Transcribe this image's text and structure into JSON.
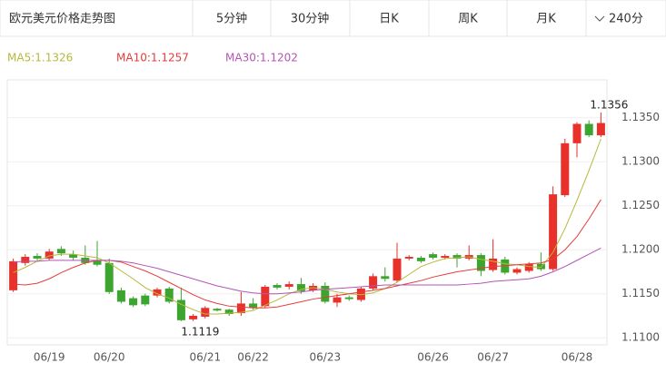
{
  "header": {
    "title": "欧元美元价格走势图",
    "tabs": [
      "5分钟",
      "30分钟",
      "日K",
      "周K",
      "月K"
    ],
    "dropdown": "240分"
  },
  "chart_data": {
    "type": "candlestick",
    "legend": [
      "MA5:1.1326",
      "MA10:1.1257",
      "MA30:1.1202"
    ],
    "categories": [
      null,
      null,
      null,
      "06/19",
      null,
      null,
      null,
      null,
      "06/20",
      null,
      null,
      null,
      null,
      null,
      null,
      null,
      "06/21",
      null,
      null,
      null,
      "06/22",
      null,
      null,
      null,
      null,
      null,
      "06/23",
      null,
      null,
      null,
      null,
      null,
      null,
      null,
      null,
      "06/26",
      null,
      null,
      null,
      null,
      "06/27",
      null,
      null,
      null,
      null,
      null,
      null,
      "06/28",
      null,
      null
    ],
    "open": [
      1.1154,
      1.1185,
      1.1193,
      1.119,
      1.1201,
      1.1195,
      1.1191,
      1.1188,
      1.1185,
      1.1154,
      1.1145,
      1.1148,
      1.1148,
      1.1156,
      1.1143,
      1.1121,
      1.1124,
      1.1133,
      1.1132,
      1.1128,
      1.1139,
      1.1136,
      1.116,
      1.1158,
      1.1161,
      1.1154,
      1.1159,
      1.114,
      1.1146,
      1.1143,
      1.1156,
      1.117,
      1.1165,
      1.119,
      1.1191,
      1.1195,
      1.1191,
      1.1194,
      1.119,
      1.1194,
      1.1177,
      1.1189,
      1.1174,
      1.1176,
      1.1184,
      1.1178,
      1.1262,
      1.1321,
      1.1343,
      1.133
    ],
    "high": [
      1.119,
      1.1195,
      1.1196,
      1.1201,
      1.1204,
      1.1199,
      1.1205,
      1.121,
      1.119,
      1.1157,
      1.1147,
      1.115,
      1.1157,
      1.1158,
      1.1157,
      1.1127,
      1.1136,
      1.1134,
      1.1133,
      1.1152,
      1.1145,
      1.116,
      1.1162,
      1.1164,
      1.1168,
      1.1162,
      1.1163,
      1.115,
      1.1148,
      1.1158,
      1.1173,
      1.118,
      1.1208,
      1.1194,
      1.1193,
      1.1197,
      1.1195,
      1.1196,
      1.1205,
      1.1196,
      1.1212,
      1.1192,
      1.118,
      1.1186,
      1.1197,
      1.1272,
      1.1326,
      1.1345,
      1.1347,
      1.1356
    ],
    "low": [
      1.1152,
      1.1182,
      1.1188,
      1.1188,
      1.1193,
      1.1188,
      1.1183,
      1.1181,
      1.115,
      1.1139,
      1.1135,
      1.1136,
      1.1146,
      1.1139,
      1.1119,
      1.1119,
      1.1122,
      1.113,
      1.1125,
      1.1125,
      1.1132,
      1.1134,
      1.1155,
      1.1155,
      1.115,
      1.1152,
      1.1139,
      1.1135,
      1.1142,
      1.1141,
      1.1154,
      1.1164,
      1.1163,
      1.1188,
      1.1185,
      1.1189,
      1.1189,
      1.118,
      1.1188,
      1.117,
      1.1175,
      1.1172,
      1.1172,
      1.1174,
      1.1176,
      1.1176,
      1.126,
      1.1305,
      1.1328,
      1.1328
    ],
    "close": [
      1.1187,
      1.1192,
      1.119,
      1.1198,
      1.1196,
      1.1191,
      1.1185,
      1.1183,
      1.1152,
      1.1141,
      1.1137,
      1.1138,
      1.1155,
      1.1141,
      1.112,
      1.1125,
      1.1134,
      1.1131,
      1.1127,
      1.1139,
      1.1134,
      1.1158,
      1.1157,
      1.1161,
      1.1153,
      1.1159,
      1.1141,
      1.1146,
      1.1144,
      1.1156,
      1.117,
      1.1167,
      1.119,
      1.1192,
      1.1187,
      1.1191,
      1.1193,
      1.119,
      1.1194,
      1.1176,
      1.119,
      1.1174,
      1.1178,
      1.1184,
      1.1178,
      1.1263,
      1.1321,
      1.1343,
      1.133,
      1.1344
    ],
    "up_color": "#e8312a",
    "down_color": "#3ca52f",
    "series": [
      {
        "name": "MA5",
        "color": "#b8b83a",
        "values": [
          1.1174,
          1.118,
          1.1187,
          1.1193,
          1.1195,
          1.1195,
          1.1193,
          1.1191,
          1.1185,
          1.1176,
          1.1167,
          1.1157,
          1.115,
          1.1145,
          1.1138,
          1.1132,
          1.1127,
          1.1127,
          1.1128,
          1.1129,
          1.1131,
          1.1137,
          1.1143,
          1.115,
          1.1155,
          1.1157,
          1.1155,
          1.1152,
          1.115,
          1.1149,
          1.1151,
          1.1156,
          1.1163,
          1.1172,
          1.1181,
          1.1186,
          1.119,
          1.1191,
          1.1192,
          1.1189,
          1.1187,
          1.1184,
          1.1183,
          1.1181,
          1.118,
          1.1197,
          1.1224,
          1.1256,
          1.129,
          1.1326
        ]
      },
      {
        "name": "MA10",
        "color": "#e63c3c",
        "values": [
          1.1161,
          1.116,
          1.1162,
          1.1167,
          1.1174,
          1.118,
          1.1185,
          1.1188,
          1.1188,
          1.1186,
          1.1181,
          1.1176,
          1.117,
          1.1163,
          1.1156,
          1.1149,
          1.1143,
          1.1139,
          1.1136,
          1.1135,
          1.1134,
          1.1134,
          1.1135,
          1.1138,
          1.1141,
          1.1144,
          1.1146,
          1.1148,
          1.115,
          1.1152,
          1.1154,
          1.1156,
          1.1159,
          1.1162,
          1.1165,
          1.1169,
          1.1172,
          1.1175,
          1.1177,
          1.1179,
          1.1181,
          1.1182,
          1.1183,
          1.1184,
          1.1185,
          1.1189,
          1.12,
          1.1215,
          1.1235,
          1.1257
        ]
      },
      {
        "name": "MA30",
        "color": "#b455b4",
        "values": [
          1.1186,
          1.1187,
          1.1187,
          1.1188,
          1.1188,
          1.1188,
          1.1188,
          1.1188,
          1.1188,
          1.1187,
          1.1185,
          1.1182,
          1.1179,
          1.1175,
          1.1171,
          1.1167,
          1.1163,
          1.1159,
          1.1156,
          1.1153,
          1.1151,
          1.115,
          1.115,
          1.1151,
          1.1152,
          1.1154,
          1.1155,
          1.1156,
          1.1157,
          1.1158,
          1.1159,
          1.116,
          1.116,
          1.116,
          1.116,
          1.116,
          1.116,
          1.116,
          1.1161,
          1.1162,
          1.1164,
          1.1165,
          1.1166,
          1.1167,
          1.117,
          1.1175,
          1.1181,
          1.1188,
          1.1195,
          1.1202
        ]
      }
    ],
    "high_label": 1.1356,
    "low_label": 1.1119,
    "ylim": [
      1.1092,
      1.1393
    ],
    "yticks": [
      {
        "value": 1.135,
        "label": "1.1350"
      },
      {
        "value": 1.13,
        "label": "1.1300"
      },
      {
        "value": 1.125,
        "label": "1.1250"
      },
      {
        "value": 1.12,
        "label": "1.1200"
      },
      {
        "value": 1.115,
        "label": "1.1150"
      },
      {
        "value": 1.11,
        "label": "1.1100"
      }
    ],
    "grid": true
  }
}
